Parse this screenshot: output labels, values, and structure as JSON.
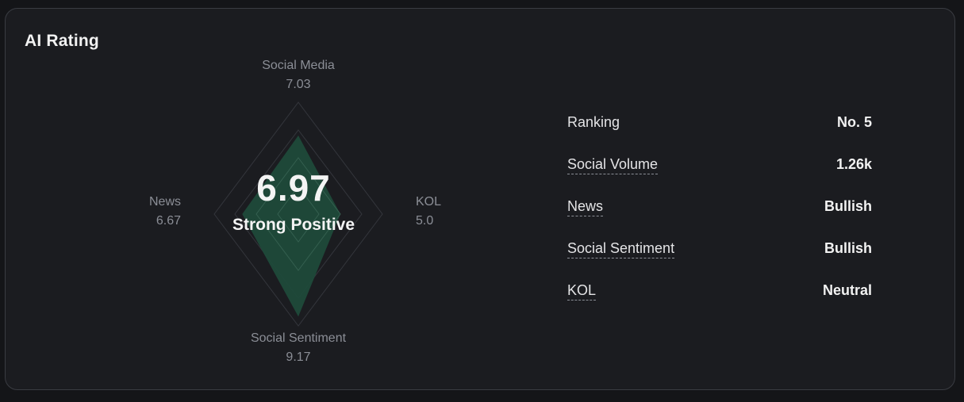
{
  "card": {
    "title": "AI Rating"
  },
  "radar": {
    "score": "6.97",
    "score_label": "Strong Positive",
    "max": 10,
    "fill_color": "#1f4a3a",
    "axes": [
      {
        "key": "social_media",
        "label": "Social Media",
        "value": "7.03",
        "value_num": 7.03
      },
      {
        "key": "kol",
        "label": "KOL",
        "value": "5.0",
        "value_num": 5.0
      },
      {
        "key": "social_sentiment",
        "label": "Social Sentiment",
        "value": "9.17",
        "value_num": 9.17
      },
      {
        "key": "news",
        "label": "News",
        "value": "6.67",
        "value_num": 6.67
      }
    ]
  },
  "metrics": [
    {
      "label": "Ranking",
      "value": "No. 5",
      "has_tooltip": false
    },
    {
      "label": "Social Volume",
      "value": "1.26k",
      "has_tooltip": true
    },
    {
      "label": "News",
      "value": "Bullish",
      "has_tooltip": true
    },
    {
      "label": "Social Sentiment",
      "value": "Bullish",
      "has_tooltip": true
    },
    {
      "label": "KOL",
      "value": "Neutral",
      "has_tooltip": true
    }
  ]
}
